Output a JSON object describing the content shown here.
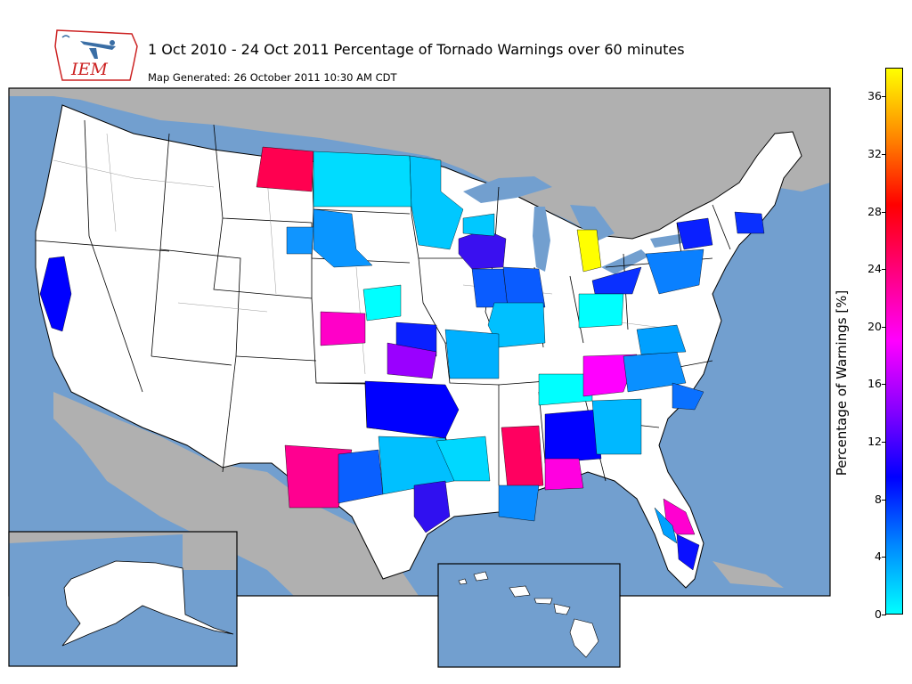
{
  "header": {
    "logo_text": "IEM",
    "title": "1 Oct 2010 - 24 Oct 2011 Percentage of Tornado Warnings over 60 minutes",
    "subtitle": "Map Generated: 26 October 2011 10:30 AM CDT"
  },
  "colorbar": {
    "label": "Percentage of Warnings [%]",
    "min": 0,
    "max": 38,
    "ticks": [
      0,
      4,
      8,
      12,
      16,
      20,
      24,
      28,
      32,
      36
    ],
    "colormap": [
      "#00ffff",
      "#0088ff",
      "#0000ff",
      "#8800ff",
      "#ff00ff",
      "#ff0080",
      "#ff0000",
      "#ff8800",
      "#ffff00"
    ]
  },
  "colors": {
    "ocean": "#729fcf",
    "land_outside": "#b0b0b0",
    "land_us": "#ffffff",
    "borders": "#000000"
  },
  "insets": [
    "Alaska",
    "Hawaii"
  ]
}
